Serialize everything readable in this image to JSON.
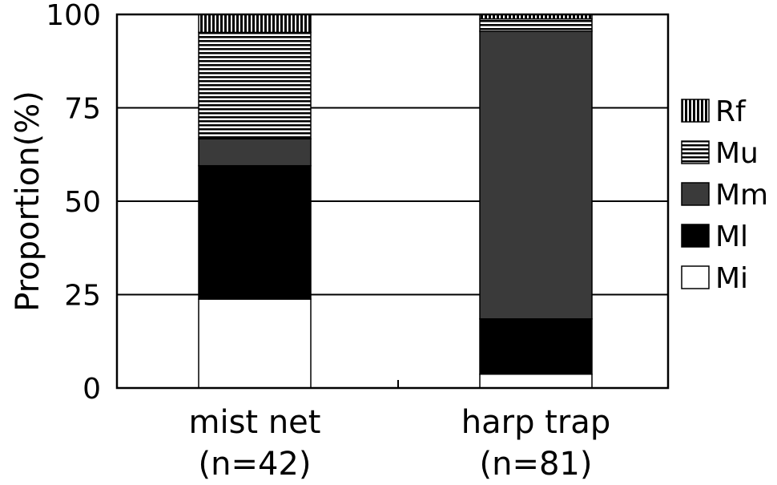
{
  "chart_data": {
    "type": "bar",
    "stacked": true,
    "ylabel": "Proportion(%)",
    "ylim": [
      0,
      100
    ],
    "yticks": [
      0,
      25,
      50,
      75,
      100
    ],
    "grid": true,
    "legend_position": "right",
    "categories": [
      {
        "label_line1": "mist net",
        "label_line2": "(n=42)"
      },
      {
        "label_line1": "harp trap",
        "label_line2": "(n=81)"
      }
    ],
    "series": [
      {
        "name": "Mi",
        "pattern": "white",
        "values": [
          23.8,
          3.7
        ]
      },
      {
        "name": "Ml",
        "pattern": "black",
        "values": [
          35.7,
          14.8
        ]
      },
      {
        "name": "Mm",
        "pattern": "gray",
        "values": [
          7.2,
          77.0
        ]
      },
      {
        "name": "Mu",
        "pattern": "horizontal-stripes",
        "values": [
          28.5,
          3.3
        ]
      },
      {
        "name": "Rf",
        "pattern": "vertical-stripes",
        "values": [
          4.8,
          1.2
        ]
      }
    ],
    "legend_order": [
      "Rf",
      "Mu",
      "Mm",
      "Ml",
      "Mi"
    ],
    "colors": {
      "black": "#000000",
      "gray": "#3a3a3a",
      "white": "#ffffff"
    }
  }
}
